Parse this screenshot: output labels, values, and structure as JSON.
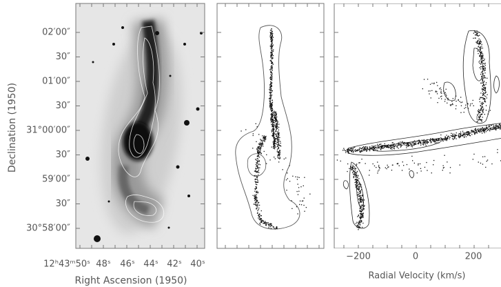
{
  "figure": {
    "y_axis": {
      "title": "Declination (1950)",
      "ticks": [
        "02′00″",
        "30″",
        "01′00″",
        "30″",
        "31°00′00″",
        "30″",
        "59′00″",
        "30″",
        "30°58′00″"
      ]
    },
    "x_axis_left": {
      "title": "Right Ascension (1950)",
      "ticks": [
        "12ʰ43ᵐ50ˢ",
        "48ˢ",
        "46ˢ",
        "44ˢ",
        "42ˢ",
        "40ˢ"
      ]
    },
    "x_axis_right": {
      "title": "Radial Velocity (km/s)",
      "ticks": [
        "−200",
        "0",
        "200"
      ]
    }
  }
}
